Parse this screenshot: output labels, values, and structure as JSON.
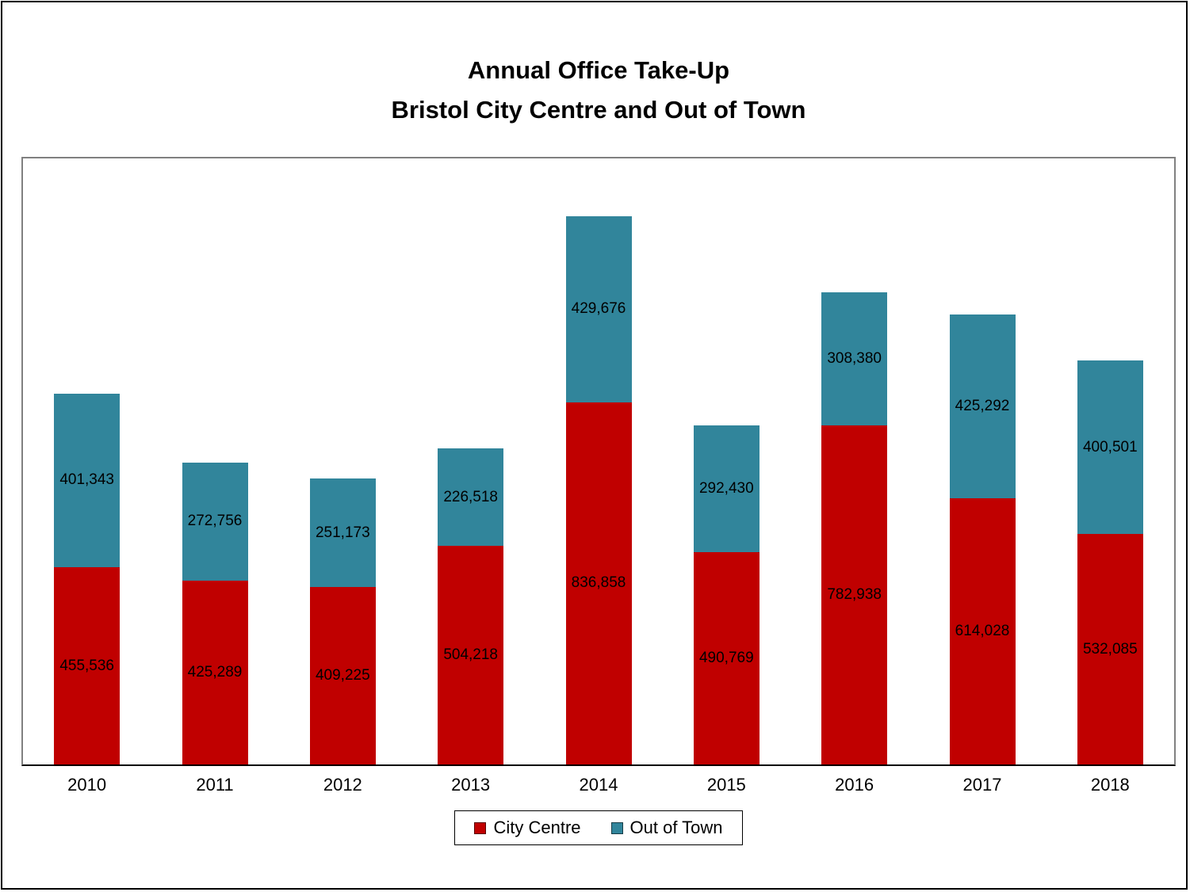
{
  "title": {
    "line1": "Annual Office Take-Up",
    "line2": "Bristol City Centre and Out of Town"
  },
  "colors": {
    "city_centre": "#C00000",
    "out_of_town": "#31859B",
    "plot_border": "#808080",
    "axis_line": "#000000",
    "label_text": "#000000"
  },
  "legend": {
    "items": [
      {
        "label": "City Centre",
        "color": "#C00000"
      },
      {
        "label": "Out of Town",
        "color": "#31859B"
      }
    ],
    "position": "bottom"
  },
  "chart_data": {
    "type": "bar",
    "stacked": true,
    "title": "Annual Office Take-Up Bristol City Centre and Out of Town",
    "categories": [
      "2010",
      "2011",
      "2012",
      "2013",
      "2014",
      "2015",
      "2016",
      "2017",
      "2018"
    ],
    "series": [
      {
        "name": "City Centre",
        "color": "#C00000",
        "values": [
          455536,
          425289,
          409225,
          504218,
          836858,
          490769,
          782938,
          614028,
          532085
        ]
      },
      {
        "name": "Out of Town",
        "color": "#31859B",
        "values": [
          401343,
          272756,
          251173,
          226518,
          429676,
          292430,
          308380,
          425292,
          400501
        ]
      }
    ],
    "xlabel": "",
    "ylabel": "",
    "ylim": [
      0,
      1400000
    ],
    "grid": false,
    "y_axis_visible": false,
    "data_labels": "center",
    "legend_position": "bottom"
  }
}
